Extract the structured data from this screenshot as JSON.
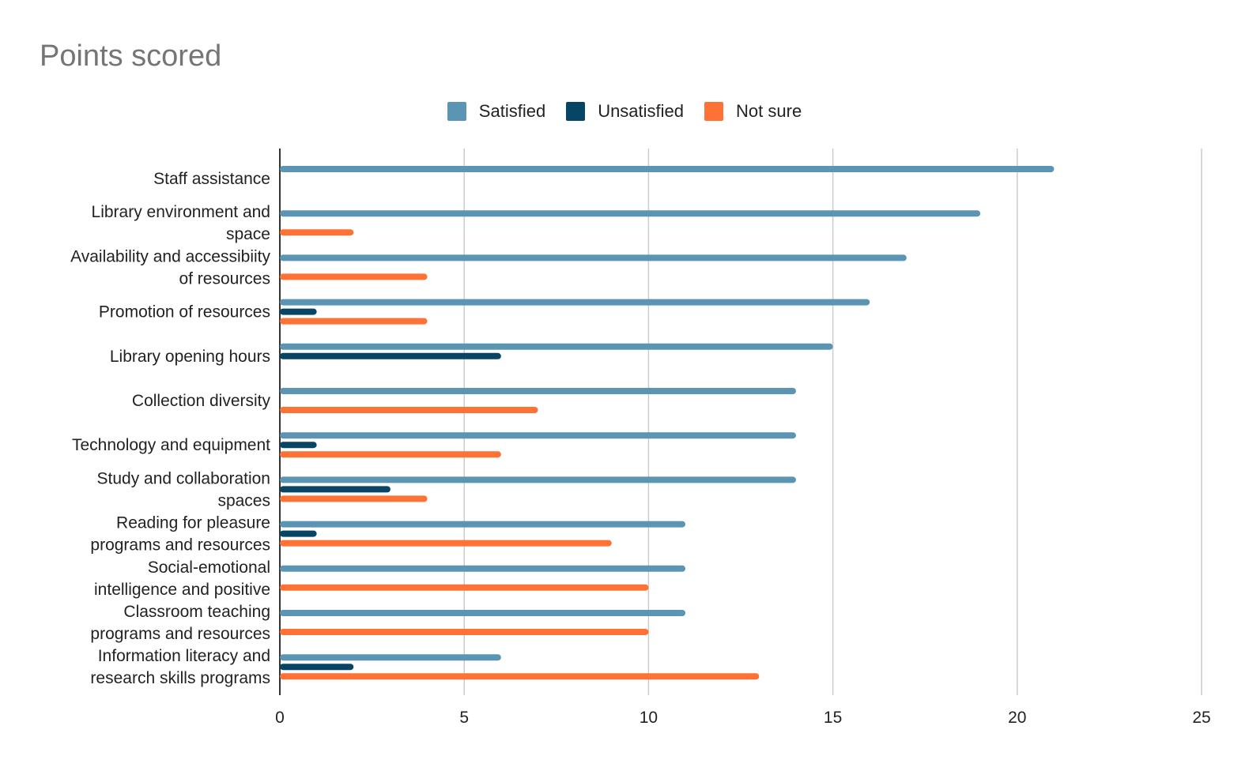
{
  "chart_data": {
    "type": "bar",
    "orientation": "horizontal",
    "title": "Points scored",
    "xlabel": "",
    "ylabel": "",
    "xlim": [
      0,
      25
    ],
    "xticks": [
      0,
      5,
      10,
      15,
      20,
      25
    ],
    "grid": true,
    "legend_position": "top-center",
    "categories": [
      "Staff assistance",
      "Library environment and space",
      "Availability and accessibiity of resources",
      "Promotion of resources",
      "Library opening hours",
      "Collection diversity",
      "Technology and equipment",
      "Study and collaboration spaces",
      "Reading for pleasure programs and resources",
      "Social-emotional intelligence and positive",
      "Classroom teaching programs and resources",
      "Information literacy and research skills programs"
    ],
    "category_lines": [
      [
        "Staff assistance"
      ],
      [
        "Library environment and",
        "space"
      ],
      [
        "Availability and accessibiity",
        "of resources"
      ],
      [
        "Promotion of resources"
      ],
      [
        "Library opening hours"
      ],
      [
        "Collection diversity"
      ],
      [
        "Technology and equipment"
      ],
      [
        "Study and collaboration",
        "spaces"
      ],
      [
        "Reading for pleasure",
        "programs and resources"
      ],
      [
        "Social-emotional",
        "intelligence and positive"
      ],
      [
        "Classroom teaching",
        "programs and resources"
      ],
      [
        "Information literacy and",
        "research skills programs"
      ]
    ],
    "series": [
      {
        "name": "Satisfied",
        "color": "#5b95b3",
        "values": [
          21,
          19,
          17,
          16,
          15,
          14,
          14,
          14,
          11,
          11,
          11,
          6
        ]
      },
      {
        "name": "Unsatisfied",
        "color": "#084564",
        "values": [
          0,
          0,
          0,
          1,
          6,
          0,
          1,
          3,
          1,
          0,
          0,
          2
        ]
      },
      {
        "name": "Not sure",
        "color": "#fe7235",
        "values": [
          0,
          2,
          4,
          4,
          0,
          7,
          6,
          4,
          9,
          10,
          10,
          13
        ]
      }
    ]
  }
}
